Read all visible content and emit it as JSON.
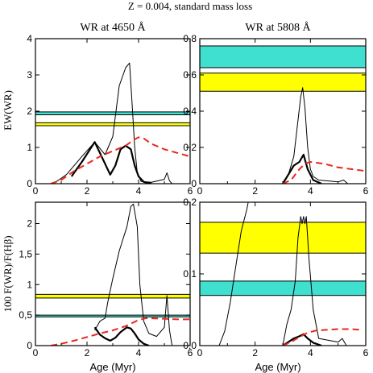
{
  "figure": {
    "title": "Z = 0.004, standard mass loss",
    "top_left_title": "WR at 4650 Å",
    "top_right_title": "WR at 5808 Å",
    "ylabel_top": "EW(WR)",
    "ylabel_bottom": "100 F(WR)/F(Hβ)",
    "xlabel": "Age (Myr)"
  },
  "colors": {
    "cyan_band": "#40e0d0",
    "yellow_band": "#ffff00",
    "dashed": "#e8281e",
    "line": "#000000"
  },
  "chart_data": [
    {
      "id": "tl",
      "type": "line",
      "xlim": [
        0,
        6
      ],
      "ylim": [
        0,
        4
      ],
      "xticks": [
        "0",
        "2",
        "4",
        "6"
      ],
      "yticks": [
        "0",
        "1",
        "2",
        "3",
        "4"
      ],
      "ytick_values": [
        0,
        1,
        2,
        3,
        4
      ],
      "xtick_values": [
        0,
        2,
        4,
        6
      ],
      "bands": [
        {
          "color": "cyan",
          "y": [
            1.9,
            1.98
          ]
        },
        {
          "color": "yellow",
          "y": [
            1.6,
            1.68
          ]
        }
      ],
      "series": [
        {
          "style": "thin",
          "x": [
            0.7,
            1.2,
            1.8,
            2.3,
            2.7,
            3.0,
            3.25,
            3.5,
            3.65,
            3.75,
            3.85,
            3.95,
            4.1,
            4.5,
            5.0,
            5.1,
            5.2,
            5.3
          ],
          "y": [
            0,
            0.25,
            0.75,
            1.15,
            0.8,
            1.3,
            2.7,
            3.2,
            3.33,
            2.2,
            1.0,
            0.3,
            0.06,
            0.04,
            0.12,
            0.3,
            0.08,
            0.0
          ]
        },
        {
          "style": "thick",
          "x": [
            1.4,
            1.8,
            2.3,
            2.6,
            2.9,
            3.1,
            3.3,
            3.5,
            3.7,
            3.85,
            4.0,
            4.2,
            4.5
          ],
          "y": [
            0.2,
            0.6,
            1.15,
            0.7,
            0.25,
            0.5,
            0.95,
            1.05,
            0.95,
            0.5,
            0.2,
            0.05,
            0.0
          ]
        },
        {
          "style": "dashed",
          "x": [
            0.6,
            1.0,
            1.5,
            2.0,
            2.5,
            3.0,
            3.5,
            3.8,
            4.0,
            4.2,
            4.5,
            5.0,
            5.5,
            6.0
          ],
          "y": [
            0.0,
            0.1,
            0.35,
            0.55,
            0.75,
            0.9,
            1.05,
            1.2,
            1.28,
            1.25,
            1.1,
            0.95,
            0.85,
            0.75
          ]
        }
      ]
    },
    {
      "id": "tr",
      "type": "line",
      "xlim": [
        0,
        6
      ],
      "ylim": [
        0,
        0.8
      ],
      "xticks": [
        "0",
        "2",
        "4",
        "6"
      ],
      "yticks": [
        "0",
        "0,2",
        "0,4",
        "0,6",
        "0,8"
      ],
      "ytick_values": [
        0,
        0.2,
        0.4,
        0.6,
        0.8
      ],
      "xtick_values": [
        0,
        2,
        4,
        6
      ],
      "bands": [
        {
          "color": "cyan",
          "y": [
            0.64,
            0.76
          ]
        },
        {
          "color": "yellow",
          "y": [
            0.51,
            0.61
          ]
        }
      ],
      "series": [
        {
          "style": "thin",
          "x": [
            3.0,
            3.2,
            3.4,
            3.55,
            3.65,
            3.72,
            3.8,
            3.9,
            4.0,
            4.1,
            4.3,
            5.0,
            5.2,
            5.35
          ],
          "y": [
            0.0,
            0.05,
            0.15,
            0.35,
            0.48,
            0.53,
            0.42,
            0.2,
            0.08,
            0.04,
            0.02,
            0.01,
            0.02,
            0.0
          ]
        },
        {
          "style": "thick",
          "x": [
            3.0,
            3.2,
            3.4,
            3.6,
            3.75,
            3.9,
            4.1,
            4.4
          ],
          "y": [
            0.0,
            0.05,
            0.1,
            0.12,
            0.16,
            0.08,
            0.02,
            0.0
          ]
        },
        {
          "style": "dashed",
          "x": [
            3.0,
            3.3,
            3.6,
            3.8,
            4.0,
            4.5,
            5.0,
            5.5,
            6.0
          ],
          "y": [
            0.0,
            0.02,
            0.08,
            0.11,
            0.12,
            0.11,
            0.09,
            0.08,
            0.07
          ]
        }
      ]
    },
    {
      "id": "bl",
      "type": "line",
      "xlim": [
        0,
        6
      ],
      "ylim": [
        0,
        2.35
      ],
      "xticks": [
        "0",
        "2",
        "4",
        "6"
      ],
      "yticks": [
        "0",
        "0,5",
        "1",
        "1,5",
        "2"
      ],
      "ytick_values": [
        0,
        0.5,
        1,
        1.5,
        2
      ],
      "xtick_values": [
        0,
        2,
        4,
        6
      ],
      "bands": [
        {
          "color": "yellow",
          "y": [
            0.78,
            0.84
          ]
        },
        {
          "color": "cyan",
          "y": [
            0.47,
            0.5
          ]
        }
      ],
      "series": [
        {
          "style": "thin",
          "x": [
            2.3,
            2.5,
            2.7,
            2.8,
            3.0,
            3.25,
            3.4,
            3.55,
            3.7,
            3.8,
            3.95,
            4.05,
            4.2,
            4.4,
            4.7,
            5.0,
            5.1,
            5.2,
            5.3
          ],
          "y": [
            0.25,
            0.4,
            0.45,
            0.7,
            1.1,
            1.55,
            1.75,
            1.95,
            2.28,
            2.32,
            1.95,
            1.0,
            0.4,
            0.2,
            0.15,
            0.3,
            0.82,
            0.25,
            0.0
          ]
        },
        {
          "style": "thick",
          "x": [
            2.3,
            2.5,
            2.7,
            2.9,
            3.1,
            3.3,
            3.55,
            3.7,
            3.85,
            4.0,
            4.2,
            4.4
          ],
          "y": [
            0.3,
            0.18,
            0.12,
            0.08,
            0.13,
            0.22,
            0.3,
            0.28,
            0.2,
            0.1,
            0.03,
            0.0
          ]
        },
        {
          "style": "dashed",
          "x": [
            0.6,
            1.0,
            1.5,
            2.0,
            2.5,
            3.0,
            3.5,
            4.0,
            4.3,
            5.0,
            5.5,
            6.0
          ],
          "y": [
            0.0,
            0.03,
            0.08,
            0.14,
            0.2,
            0.25,
            0.32,
            0.42,
            0.45,
            0.44,
            0.43,
            0.43
          ]
        }
      ]
    },
    {
      "id": "br",
      "type": "line",
      "xlim": [
        0,
        6
      ],
      "ylim": [
        0,
        0.2
      ],
      "xticks": [
        "0",
        "2",
        "4",
        "6"
      ],
      "yticks": [
        "0,0",
        "0,1",
        "0,2"
      ],
      "ytick_values": [
        0,
        0.1,
        0.2
      ],
      "xtick_values": [
        0,
        2,
        4,
        6
      ],
      "bands": [
        {
          "color": "yellow",
          "y": [
            0.129,
            0.172
          ]
        },
        {
          "color": "cyan",
          "y": [
            0.07,
            0.09
          ]
        }
      ],
      "series": [
        {
          "style": "thin",
          "x": [
            0.7,
            0.9,
            1.1,
            1.3,
            1.5,
            1.7,
            1.8
          ],
          "y": [
            0.0,
            0.02,
            0.06,
            0.11,
            0.16,
            0.19,
            0.21
          ]
        },
        {
          "style": "thin",
          "x": [
            3.0,
            3.15,
            3.3,
            3.45,
            3.55,
            3.65,
            3.7,
            3.75,
            3.8,
            3.85,
            3.95,
            4.1,
            4.3,
            5.0,
            5.15,
            5.3
          ],
          "y": [
            0.0,
            0.03,
            0.05,
            0.09,
            0.15,
            0.18,
            0.17,
            0.18,
            0.17,
            0.18,
            0.12,
            0.05,
            0.01,
            0.005,
            0.01,
            0.0
          ]
        },
        {
          "style": "thick",
          "x": [
            3.0,
            3.2,
            3.4,
            3.6,
            3.75,
            3.9,
            4.1,
            4.4
          ],
          "y": [
            0.0,
            0.005,
            0.01,
            0.013,
            0.016,
            0.01,
            0.004,
            0.0
          ]
        },
        {
          "style": "dashed",
          "x": [
            3.0,
            3.3,
            3.6,
            3.9,
            4.2,
            4.6,
            5.0,
            5.5,
            5.8
          ],
          "y": [
            0.0,
            0.005,
            0.012,
            0.018,
            0.021,
            0.022,
            0.023,
            0.023,
            0.022
          ]
        }
      ]
    }
  ]
}
